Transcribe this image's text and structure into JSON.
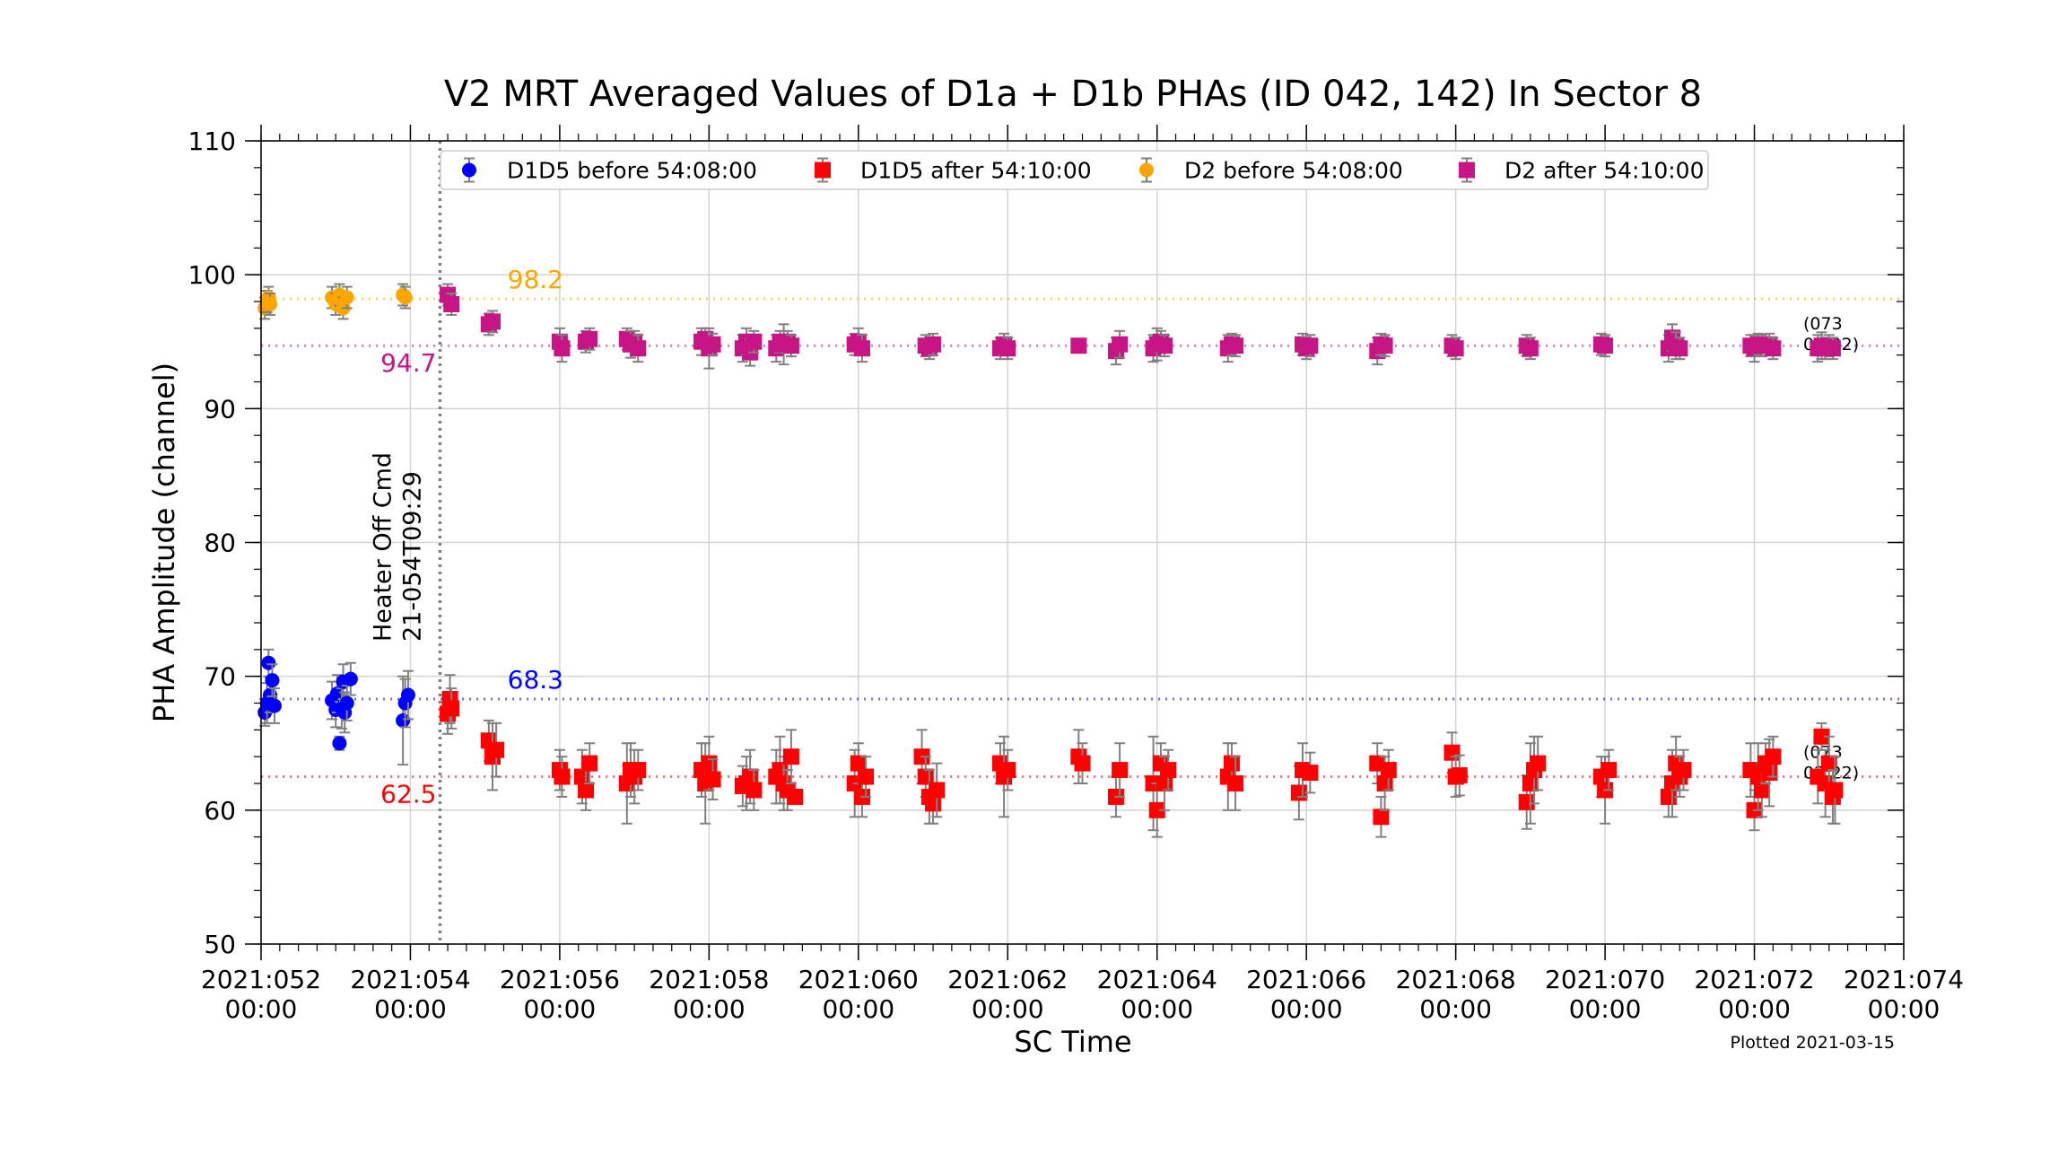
{
  "chart_data": {
    "type": "scatter",
    "title": "V2 MRT Averaged Values of D1a + D1b PHAs (ID 042, 142) In Sector 8",
    "xlabel": "SC Time",
    "ylabel": "PHA Amplitude (channel)",
    "xlim": [
      52.0,
      74.0
    ],
    "ylim": [
      50,
      110
    ],
    "x_unit": "day of year 2021",
    "x_major_ticks": [
      {
        "day": 52,
        "label": "2021:052\n00:00"
      },
      {
        "day": 54,
        "label": "2021:054\n00:00"
      },
      {
        "day": 56,
        "label": "2021:056\n00:00"
      },
      {
        "day": 58,
        "label": "2021:058\n00:00"
      },
      {
        "day": 60,
        "label": "2021:060\n00:00"
      },
      {
        "day": 62,
        "label": "2021:062\n00:00"
      },
      {
        "day": 64,
        "label": "2021:064\n00:00"
      },
      {
        "day": 66,
        "label": "2021:066\n00:00"
      },
      {
        "day": 68,
        "label": "2021:068\n00:00"
      },
      {
        "day": 70,
        "label": "2021:070\n00:00"
      },
      {
        "day": 72,
        "label": "2021:072\n00:00"
      },
      {
        "day": 74,
        "label": "2021:074\n00:00"
      }
    ],
    "y_ticks": [
      50,
      60,
      70,
      80,
      90,
      100,
      110
    ],
    "grid": true,
    "legend_placement": "top",
    "series": [
      {
        "name": "D1D5 before 54:08:00",
        "marker": "circle",
        "color": "#0000ff",
        "points": [
          [
            52.05,
            67.3,
            1.0
          ],
          [
            52.08,
            68.0,
            1.5
          ],
          [
            52.1,
            71.0,
            1.0
          ],
          [
            52.12,
            68.6,
            1.3
          ],
          [
            52.15,
            69.7,
            1.2
          ],
          [
            52.18,
            67.8,
            1.3
          ],
          [
            52.95,
            68.2,
            1.4
          ],
          [
            53.0,
            67.5,
            1.3
          ],
          [
            53.02,
            68.7,
            1.4
          ],
          [
            53.05,
            65.0,
            0.5
          ],
          [
            53.08,
            67.6,
            1.5
          ],
          [
            53.1,
            69.6,
            1.3
          ],
          [
            53.12,
            67.3,
            1.5
          ],
          [
            53.15,
            68.0,
            1.3
          ],
          [
            53.2,
            69.8,
            1.2
          ],
          [
            53.9,
            66.7,
            3.3
          ],
          [
            53.93,
            68.0,
            1.8
          ],
          [
            53.97,
            68.6,
            1.8
          ]
        ]
      },
      {
        "name": "D1D5 after 54:10:00",
        "marker": "square",
        "color": "#ff0000",
        "points": [
          [
            54.5,
            67.2,
            1.5
          ],
          [
            54.53,
            68.3,
            1.8
          ],
          [
            54.55,
            67.6,
            1.5
          ],
          [
            55.05,
            65.2,
            1.5
          ],
          [
            55.1,
            64.0,
            2.5
          ],
          [
            55.15,
            64.5,
            2.0
          ],
          [
            56.0,
            63.0,
            1.5
          ],
          [
            56.03,
            62.5,
            1.5
          ],
          [
            56.3,
            62.5,
            2.0
          ],
          [
            56.35,
            61.5,
            1.5
          ],
          [
            56.4,
            63.5,
            1.5
          ],
          [
            56.9,
            62.0,
            3.0
          ],
          [
            56.95,
            63.0,
            2.0
          ],
          [
            57.0,
            62.5,
            2.0
          ],
          [
            57.05,
            63.0,
            1.5
          ],
          [
            57.9,
            63.0,
            2.0
          ],
          [
            57.95,
            62.0,
            3.0
          ],
          [
            58.0,
            63.5,
            2.0
          ],
          [
            58.05,
            62.3,
            1.5
          ],
          [
            58.45,
            61.8,
            1.5
          ],
          [
            58.5,
            62.0,
            2.0
          ],
          [
            58.55,
            62.5,
            2.0
          ],
          [
            58.6,
            61.5,
            1.5
          ],
          [
            58.9,
            62.5,
            2.0
          ],
          [
            58.95,
            63.0,
            2.5
          ],
          [
            59.0,
            62.0,
            2.0
          ],
          [
            59.05,
            61.5,
            1.5
          ],
          [
            59.1,
            64.0,
            2.0
          ],
          [
            59.15,
            61.0,
            0.5
          ],
          [
            59.95,
            62.0,
            2.5
          ],
          [
            60.0,
            63.5,
            1.5
          ],
          [
            60.05,
            61.0,
            1.5
          ],
          [
            60.1,
            62.5,
            1.5
          ],
          [
            60.85,
            64.0,
            2.0
          ],
          [
            60.9,
            62.5,
            1.5
          ],
          [
            60.95,
            61.0,
            2.0
          ],
          [
            61.0,
            60.5,
            1.5
          ],
          [
            61.05,
            61.5,
            2.0
          ],
          [
            61.9,
            63.5,
            1.5
          ],
          [
            61.95,
            62.5,
            3.0
          ],
          [
            62.0,
            63.0,
            1.5
          ],
          [
            62.95,
            64.0,
            2.0
          ],
          [
            63.0,
            63.5,
            1.5
          ],
          [
            63.45,
            61.0,
            1.5
          ],
          [
            63.5,
            63.0,
            2.0
          ],
          [
            63.95,
            62.0,
            3.5
          ],
          [
            64.0,
            60.0,
            2.0
          ],
          [
            64.05,
            63.5,
            1.5
          ],
          [
            64.1,
            62.0,
            2.0
          ],
          [
            64.15,
            63.0,
            1.5
          ],
          [
            64.95,
            62.5,
            2.5
          ],
          [
            65.0,
            63.5,
            1.5
          ],
          [
            65.05,
            62.0,
            2.0
          ],
          [
            65.9,
            61.3,
            2.0
          ],
          [
            65.95,
            63.0,
            2.0
          ],
          [
            66.05,
            62.8,
            1.5
          ],
          [
            66.95,
            63.5,
            1.5
          ],
          [
            67.0,
            59.5,
            1.5
          ],
          [
            67.05,
            62.0,
            2.0
          ],
          [
            67.1,
            63.0,
            1.5
          ],
          [
            67.95,
            64.3,
            1.5
          ],
          [
            68.0,
            62.5,
            1.5
          ],
          [
            68.05,
            62.6,
            1.5
          ],
          [
            68.95,
            60.6,
            2.0
          ],
          [
            69.0,
            62.0,
            3.0
          ],
          [
            69.05,
            63.0,
            2.5
          ],
          [
            69.1,
            63.5,
            2.0
          ],
          [
            69.95,
            62.5,
            1.5
          ],
          [
            70.0,
            61.5,
            2.5
          ],
          [
            70.05,
            63.0,
            1.5
          ],
          [
            70.85,
            61.0,
            1.5
          ],
          [
            70.9,
            62.0,
            2.5
          ],
          [
            70.95,
            63.5,
            2.0
          ],
          [
            71.0,
            62.5,
            1.5
          ],
          [
            71.05,
            63.0,
            1.5
          ],
          [
            71.95,
            63.0,
            2.0
          ],
          [
            72.0,
            60.0,
            1.5
          ],
          [
            72.05,
            62.5,
            2.5
          ],
          [
            72.1,
            61.5,
            2.0
          ],
          [
            72.15,
            63.5,
            1.5
          ],
          [
            72.2,
            62.8,
            2.5
          ],
          [
            72.25,
            64.0,
            1.5
          ],
          [
            72.85,
            62.5,
            2.0
          ],
          [
            72.9,
            65.5,
            1.0
          ],
          [
            72.95,
            62.0,
            2.5
          ],
          [
            73.0,
            63.5,
            2.0
          ],
          [
            73.05,
            61.0,
            2.0
          ],
          [
            73.08,
            61.5,
            2.5
          ]
        ]
      },
      {
        "name": "D2 before 54:08:00",
        "marker": "circle",
        "color": "#ffa500",
        "points": [
          [
            52.05,
            97.5,
            0.8
          ],
          [
            52.08,
            98.0,
            0.8
          ],
          [
            52.1,
            98.3,
            0.8
          ],
          [
            52.12,
            97.8,
            0.8
          ],
          [
            52.95,
            98.3,
            0.8
          ],
          [
            53.0,
            97.8,
            0.8
          ],
          [
            53.05,
            98.5,
            0.8
          ],
          [
            53.1,
            97.5,
            0.8
          ],
          [
            53.15,
            98.3,
            0.8
          ],
          [
            53.9,
            98.5,
            0.8
          ],
          [
            53.93,
            98.3,
            0.8
          ]
        ]
      },
      {
        "name": "D2 after 54:10:00",
        "marker": "square",
        "color": "#c71585",
        "points": [
          [
            54.5,
            98.5,
            0.8
          ],
          [
            54.55,
            97.8,
            0.8
          ],
          [
            55.05,
            96.3,
            0.8
          ],
          [
            55.1,
            96.5,
            0.8
          ],
          [
            56.0,
            95.0,
            1.0
          ],
          [
            56.03,
            94.5,
            1.0
          ],
          [
            56.35,
            95.0,
            0.8
          ],
          [
            56.4,
            95.2,
            0.8
          ],
          [
            56.9,
            95.2,
            0.8
          ],
          [
            56.95,
            94.8,
            1.0
          ],
          [
            57.0,
            95.0,
            0.8
          ],
          [
            57.05,
            94.5,
            1.0
          ],
          [
            57.9,
            95.0,
            1.0
          ],
          [
            57.95,
            95.2,
            0.8
          ],
          [
            58.0,
            94.5,
            1.5
          ],
          [
            58.05,
            94.8,
            0.8
          ],
          [
            58.45,
            94.5,
            1.0
          ],
          [
            58.5,
            95.0,
            1.0
          ],
          [
            58.55,
            94.2,
            1.0
          ],
          [
            58.6,
            95.0,
            0.8
          ],
          [
            58.9,
            94.5,
            1.0
          ],
          [
            58.95,
            95.0,
            0.8
          ],
          [
            59.0,
            94.8,
            1.5
          ],
          [
            59.05,
            95.0,
            0.8
          ],
          [
            59.1,
            94.7,
            0.8
          ],
          [
            59.95,
            94.8,
            0.8
          ],
          [
            60.0,
            95.0,
            1.0
          ],
          [
            60.05,
            94.5,
            1.0
          ],
          [
            60.9,
            94.7,
            0.8
          ],
          [
            60.95,
            94.5,
            0.8
          ],
          [
            61.0,
            94.8,
            0.8
          ],
          [
            61.9,
            94.5,
            0.8
          ],
          [
            61.95,
            94.8,
            0.8
          ],
          [
            62.0,
            94.5,
            0.8
          ],
          [
            62.95,
            94.7,
            0.3
          ],
          [
            63.45,
            94.3,
            1.0
          ],
          [
            63.5,
            94.8,
            1.0
          ],
          [
            63.95,
            94.5,
            1.0
          ],
          [
            64.0,
            94.8,
            1.2
          ],
          [
            64.05,
            95.0,
            0.8
          ],
          [
            64.1,
            94.7,
            0.8
          ],
          [
            64.95,
            94.5,
            1.0
          ],
          [
            65.0,
            94.8,
            0.8
          ],
          [
            65.05,
            94.7,
            0.8
          ],
          [
            65.95,
            94.8,
            0.8
          ],
          [
            66.0,
            94.5,
            0.8
          ],
          [
            66.05,
            94.7,
            0.8
          ],
          [
            66.95,
            94.3,
            1.0
          ],
          [
            67.0,
            94.8,
            0.8
          ],
          [
            67.05,
            94.7,
            0.8
          ],
          [
            67.95,
            94.7,
            0.8
          ],
          [
            68.0,
            94.5,
            0.8
          ],
          [
            68.95,
            94.7,
            0.8
          ],
          [
            69.0,
            94.5,
            0.8
          ],
          [
            69.95,
            94.8,
            0.8
          ],
          [
            70.0,
            94.7,
            0.8
          ],
          [
            70.85,
            94.5,
            1.0
          ],
          [
            70.9,
            95.3,
            1.0
          ],
          [
            70.95,
            94.7,
            1.0
          ],
          [
            71.0,
            94.5,
            0.8
          ],
          [
            71.95,
            94.7,
            0.8
          ],
          [
            72.0,
            94.5,
            1.0
          ],
          [
            72.05,
            94.8,
            0.8
          ],
          [
            72.1,
            94.7,
            0.8
          ],
          [
            72.2,
            94.8,
            0.8
          ],
          [
            72.25,
            94.5,
            0.8
          ],
          [
            72.85,
            94.5,
            1.0
          ],
          [
            72.9,
            94.7,
            1.0
          ],
          [
            72.95,
            94.5,
            0.8
          ],
          [
            73.0,
            94.7,
            0.8
          ],
          [
            73.05,
            94.5,
            0.8
          ]
        ]
      }
    ],
    "reference_lines": [
      {
        "value": 98.2,
        "label": "98.2",
        "color": "#ffa500",
        "label_x": 55.3,
        "label_position": "above"
      },
      {
        "value": 94.7,
        "label": "94.7",
        "color": "#c71585",
        "label_x": 53.6,
        "label_position": "below"
      },
      {
        "value": 68.3,
        "label": "68.3",
        "color": "#0000ff",
        "label_x": 55.3,
        "label_position": "above"
      },
      {
        "value": 62.5,
        "label": "62.5",
        "color": "#ff0000",
        "label_x": 53.6,
        "label_position": "below"
      }
    ],
    "vertical_line": {
      "day": 54.3968,
      "label_lines": [
        "Heater Off Cmd",
        "21-054T09:29"
      ],
      "color": "#808080"
    },
    "end_annotations": [
      {
        "y": 94.5,
        "lines": [
          "(073",
          "02:22)"
        ]
      },
      {
        "y": 62.5,
        "lines": [
          "(073",
          "02:22)"
        ]
      }
    ],
    "errorbar_color": "#808080",
    "plotted_note": "Plotted 2021-03-15"
  }
}
